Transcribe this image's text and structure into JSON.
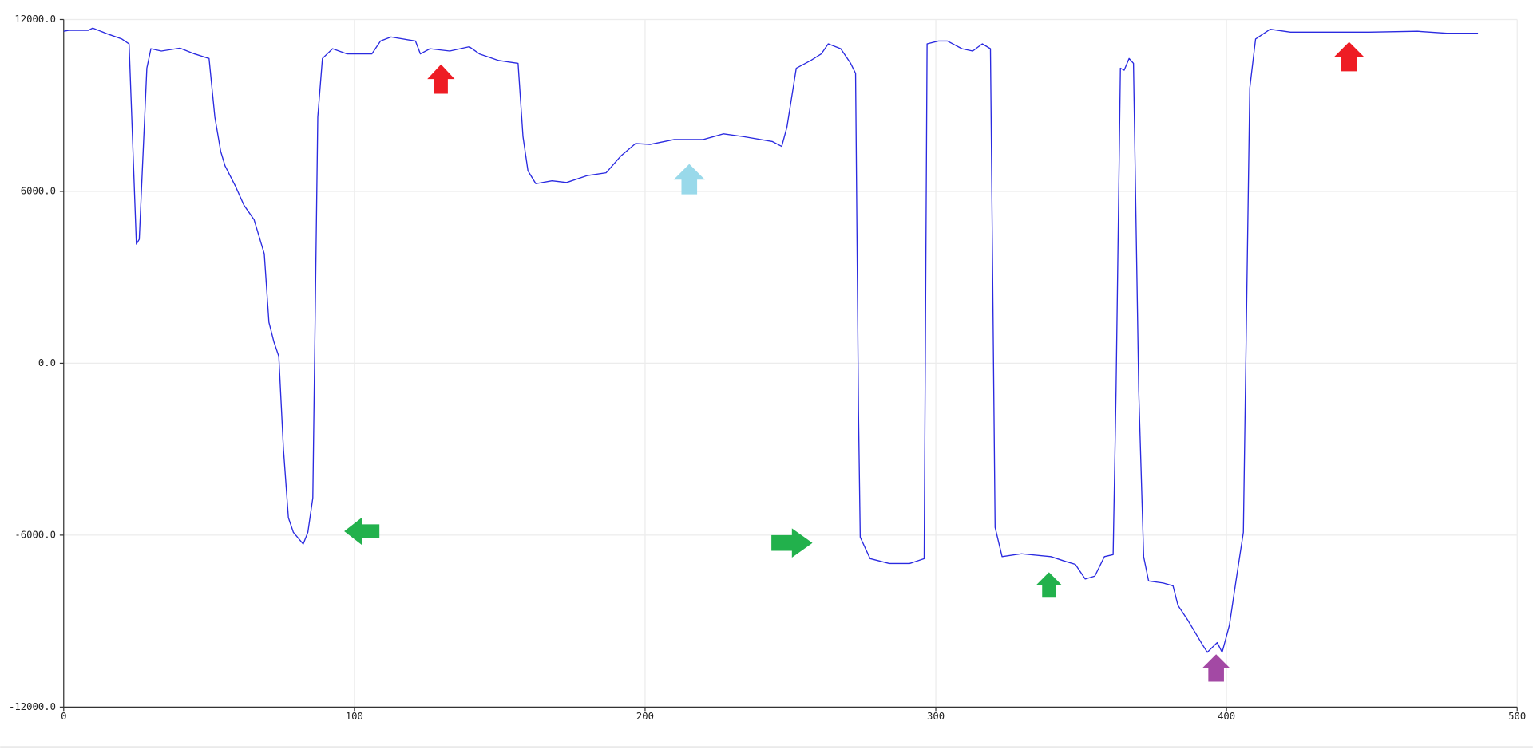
{
  "chart_data": {
    "type": "line",
    "color": "#2a2ae0",
    "grid": true,
    "x": [
      0,
      1.7,
      8.4,
      10,
      15,
      20,
      22.5,
      25,
      26,
      28.6,
      30,
      33.6,
      40,
      45,
      50,
      52,
      54,
      55.5,
      59,
      62,
      65.5,
      67,
      69,
      70.6,
      72.3,
      74,
      75.6,
      77.3,
      79,
      82.4,
      84,
      85.7,
      87.4,
      89,
      92.5,
      97.5,
      102.5,
      106,
      109,
      112.6,
      121,
      122.7,
      126,
      132.8,
      139.5,
      143,
      149.6,
      156.3,
      158,
      159.7,
      162.4,
      168,
      173,
      180,
      186.6,
      191.6,
      196.7,
      201.7,
      210,
      220,
      227,
      234,
      243.8,
      247,
      248.8,
      252,
      257,
      260.6,
      263,
      267.3,
      270.7,
      272.4,
      273.4,
      274,
      277.4,
      284,
      291,
      296,
      297,
      300.9,
      304,
      309,
      312.7,
      316,
      318.8,
      320.4,
      322.8,
      329.5,
      339.6,
      344.7,
      348,
      351.4,
      354.7,
      358,
      361,
      362,
      363.5,
      364.8,
      366.5,
      368,
      369.8,
      371.5,
      373.2,
      378.2,
      381.6,
      383.3,
      386.7,
      391.7,
      393.4,
      396.8,
      398.5,
      401,
      403.5,
      405.8,
      408,
      410,
      415,
      422,
      432,
      449,
      465.7,
      475.8,
      486.5
    ],
    "values": [
      11590,
      11620,
      11620,
      11700,
      11500,
      11320,
      11150,
      4160,
      4330,
      10300,
      10980,
      10900,
      11000,
      10800,
      10640,
      8590,
      7400,
      6890,
      6200,
      5520,
      5010,
      4500,
      3820,
      1430,
      750,
      240,
      -3000,
      -5390,
      -5900,
      -6310,
      -5900,
      -4700,
      8590,
      10640,
      10980,
      10800,
      10800,
      10800,
      11250,
      11390,
      11250,
      10800,
      10980,
      10900,
      11050,
      10800,
      10570,
      10470,
      7910,
      6720,
      6270,
      6370,
      6310,
      6550,
      6650,
      7230,
      7670,
      7640,
      7810,
      7810,
      8010,
      7910,
      7740,
      7570,
      8250,
      10300,
      10570,
      10800,
      11150,
      10980,
      10470,
      10120,
      -1640,
      -6070,
      -6820,
      -6990,
      -6990,
      -6820,
      11150,
      11250,
      11250,
      10980,
      10900,
      11150,
      10980,
      -5730,
      -6750,
      -6650,
      -6750,
      -6920,
      -7020,
      -7530,
      -7430,
      -6750,
      -6680,
      -950,
      10300,
      10230,
      10640,
      10470,
      -950,
      -6750,
      -7600,
      -7670,
      -7770,
      -8450,
      -8970,
      -9820,
      -10090,
      -9750,
      -10090,
      -9140,
      -7430,
      -5900,
      9610,
      11320,
      11660,
      11560,
      11560,
      11560,
      11590,
      11520,
      11520
    ],
    "xlim": [
      0,
      500
    ],
    "xticks": [
      0,
      100,
      200,
      300,
      400,
      500
    ],
    "ylim": [
      -12000,
      12000
    ],
    "yticks": [
      {
        "value": -12000,
        "label": "-12000.0"
      },
      {
        "value": -6000,
        "label": "-6000.0"
      },
      {
        "value": 0,
        "label": "0.0"
      },
      {
        "value": 6000,
        "label": "6000.0"
      },
      {
        "value": 12000,
        "label": "12000.0"
      }
    ]
  }
}
